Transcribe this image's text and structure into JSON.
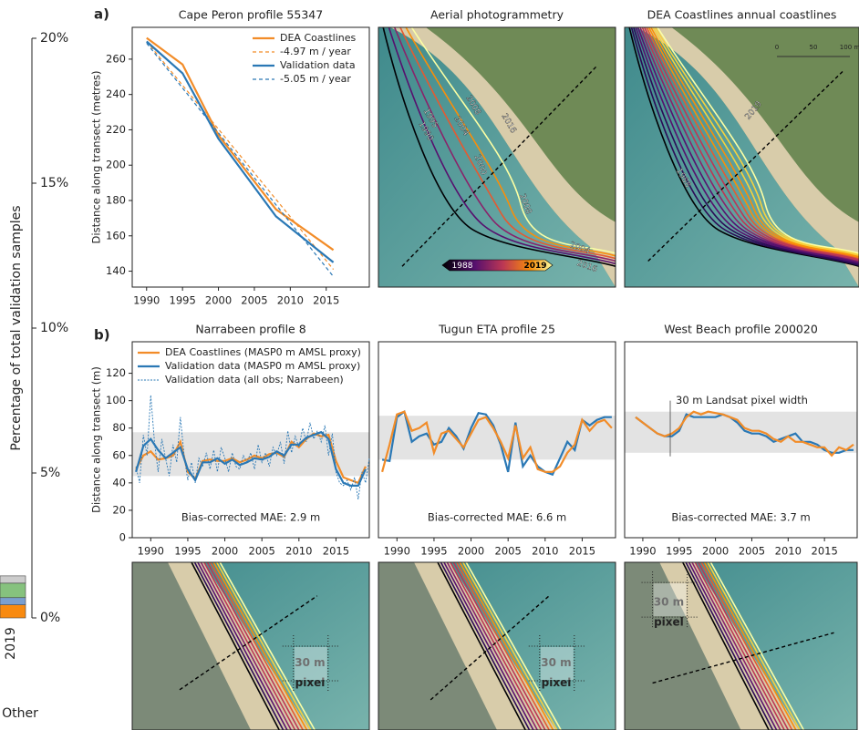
{
  "panel_labels": [
    "a)",
    "b)"
  ],
  "chart_data": [
    {
      "type": "stacked-bar",
      "ylabel": "Percentage of total validation samples",
      "xlabel": "Other",
      "categories": [
        "2019"
      ],
      "ylim": [
        0,
        20
      ],
      "yticks": [
        {
          "value": 0,
          "label": "0%"
        },
        {
          "value": 5,
          "label": "5%"
        },
        {
          "value": 10,
          "label": "10%"
        },
        {
          "value": 15,
          "label": "15%"
        },
        {
          "value": 20,
          "label": "20%"
        }
      ],
      "series": [
        {
          "color": "#f88a10",
          "values": [
            0.45
          ]
        },
        {
          "color": "#7a9fd0",
          "values": [
            0.25
          ]
        },
        {
          "color": "#86c27e",
          "values": [
            0.5
          ]
        },
        {
          "color": "#cccccc",
          "values": [
            0.25
          ]
        }
      ]
    },
    {
      "type": "line",
      "title": "Cape Peron profile 55347",
      "ylabel": "Distance along transect (metres)",
      "xlim": [
        1988,
        2021
      ],
      "xticks": [
        1990,
        1995,
        2000,
        2005,
        2010,
        2015
      ],
      "ylim": [
        131,
        278
      ],
      "yticks": [
        140,
        160,
        180,
        200,
        220,
        240,
        260
      ],
      "legend": "upper right",
      "series": [
        {
          "name": "DEA Coastlines",
          "color": "#f28c28",
          "x": [
            1990,
            1995,
            2000,
            2008,
            2016
          ],
          "values": [
            272,
            257,
            217,
            175,
            152
          ]
        },
        {
          "name": "-4.97 m / year",
          "color": "#f28c28",
          "dash": true,
          "x": [
            1990,
            2016
          ],
          "values": [
            270,
            141
          ]
        },
        {
          "name": "Validation data",
          "color": "#2a78b5",
          "x": [
            1990,
            1995,
            2000,
            2008,
            2016
          ],
          "values": [
            270,
            252,
            215,
            171,
            145
          ]
        },
        {
          "name": "-5.05 m / year",
          "color": "#2a78b5",
          "dash": true,
          "x": [
            1990,
            2016
          ],
          "values": [
            269,
            137
          ]
        }
      ]
    },
    {
      "type": "line",
      "title": "Narrabeen profile 8",
      "ylabel": "Distance along transect (m)",
      "xlim": [
        1987.5,
        2019.5
      ],
      "xticks": [
        1990,
        1995,
        2000,
        2005,
        2010,
        2015
      ],
      "ylim": [
        0,
        143
      ],
      "yticks": [
        0,
        20,
        40,
        60,
        80,
        100,
        120
      ],
      "band": [
        45,
        77
      ],
      "legend": "upper left",
      "annotation": "Bias-corrected MAE: 2.9 m",
      "x": [
        1988,
        1989,
        1990,
        1991,
        1992,
        1993,
        1994,
        1995,
        1996,
        1997,
        1998,
        1999,
        2000,
        2001,
        2002,
        2003,
        2004,
        2005,
        2006,
        2007,
        2008,
        2009,
        2010,
        2011,
        2012,
        2013,
        2014,
        2015,
        2016,
        2017,
        2018,
        2019
      ],
      "series": [
        {
          "name": "DEA Coastlines (MASP0 m AMSL proxy)",
          "color": "#f28c28",
          "values": [
            50,
            60,
            63,
            57,
            58,
            60,
            70,
            48,
            43,
            56,
            57,
            56,
            56,
            58,
            55,
            57,
            60,
            58,
            61,
            62,
            59,
            70,
            66,
            72,
            76,
            74,
            75,
            56,
            44,
            42,
            40,
            52
          ]
        },
        {
          "name": "Validation data (MASP0 m AMSL proxy)",
          "color": "#2a78b5",
          "values": [
            48,
            67,
            72,
            64,
            58,
            62,
            66,
            50,
            42,
            55,
            55,
            58,
            54,
            57,
            53,
            55,
            58,
            57,
            59,
            63,
            60,
            68,
            68,
            73,
            75,
            77,
            72,
            50,
            40,
            38,
            38,
            50
          ]
        },
        {
          "name": "Validation data (all obs; Narrabeen)",
          "color": "#2a78b5",
          "dash": true,
          "thin": true,
          "x": [
            1988,
            1988.5,
            1989,
            1989.5,
            1990,
            1990.5,
            1991,
            1991.5,
            1992,
            1992.5,
            1993,
            1993.5,
            1994,
            1994.5,
            1995,
            1995.5,
            1996,
            1996.5,
            1997,
            1997.5,
            1998,
            1998.5,
            1999,
            1999.5,
            2000,
            2000.5,
            2001,
            2001.5,
            2002,
            2002.5,
            2003,
            2003.5,
            2004,
            2004.5,
            2005,
            2005.5,
            2006,
            2006.5,
            2007,
            2007.5,
            2008,
            2008.5,
            2009,
            2009.5,
            2010,
            2010.5,
            2011,
            2011.5,
            2012,
            2012.5,
            2013,
            2013.5,
            2014,
            2014.5,
            2015,
            2015.5,
            2016,
            2016.5,
            2017,
            2017.5,
            2018,
            2018.5,
            2019,
            2019.5
          ],
          "values": [
            52,
            40,
            75,
            60,
            104,
            70,
            48,
            72,
            58,
            45,
            68,
            55,
            88,
            60,
            42,
            55,
            40,
            58,
            52,
            62,
            50,
            64,
            48,
            66,
            58,
            48,
            62,
            52,
            50,
            60,
            55,
            62,
            50,
            68,
            55,
            62,
            52,
            66,
            60,
            70,
            54,
            78,
            62,
            74,
            66,
            80,
            70,
            84,
            72,
            78,
            70,
            82,
            60,
            76,
            48,
            40,
            38,
            42,
            35,
            44,
            28,
            48,
            40,
            58
          ]
        }
      ]
    },
    {
      "type": "line",
      "title": "Tugun ETA profile 25",
      "xlim": [
        1987.5,
        2019.5
      ],
      "xticks": [
        1990,
        1995,
        2000,
        2005,
        2010,
        2015
      ],
      "ylim": [
        0,
        143
      ],
      "band": [
        57,
        89
      ],
      "annotation": "Bias-corrected MAE: 6.6 m",
      "x": [
        1988,
        1989,
        1990,
        1991,
        1992,
        1993,
        1994,
        1995,
        1996,
        1997,
        1998,
        1999,
        2000,
        2001,
        2002,
        2003,
        2004,
        2005,
        2006,
        2007,
        2008,
        2009,
        2010,
        2011,
        2012,
        2013,
        2014,
        2015,
        2016,
        2017,
        2018,
        2019
      ],
      "series": [
        {
          "color": "#2a78b5",
          "values": [
            57,
            56,
            88,
            92,
            70,
            74,
            76,
            68,
            70,
            80,
            74,
            65,
            80,
            91,
            90,
            82,
            68,
            48,
            84,
            52,
            60,
            52,
            48,
            46,
            58,
            70,
            64,
            86,
            82,
            86,
            88,
            88
          ]
        },
        {
          "color": "#f28c28",
          "values": [
            48,
            68,
            90,
            92,
            78,
            80,
            84,
            62,
            76,
            78,
            72,
            66,
            76,
            86,
            88,
            80,
            70,
            58,
            82,
            58,
            66,
            50,
            48,
            48,
            52,
            62,
            68,
            86,
            78,
            84,
            86,
            80
          ]
        }
      ]
    },
    {
      "type": "line",
      "title": "West Beach profile 200020",
      "xlim": [
        1987.5,
        2019.5
      ],
      "xticks": [
        1990,
        1995,
        2000,
        2005,
        2010,
        2015
      ],
      "ylim": [
        0,
        143
      ],
      "band": [
        62,
        92
      ],
      "annotation": "Bias-corrected MAE: 3.7 m",
      "band_label": "30 m Landsat pixel width",
      "x": [
        1989,
        1990,
        1991,
        1992,
        1993,
        1994,
        1995,
        1996,
        1997,
        1998,
        1999,
        2000,
        2001,
        2002,
        2003,
        2004,
        2005,
        2006,
        2007,
        2008,
        2009,
        2010,
        2011,
        2012,
        2013,
        2014,
        2015,
        2016,
        2017,
        2018,
        2019
      ],
      "series": [
        {
          "color": "#2a78b5",
          "values": [
            88,
            84,
            80,
            76,
            74,
            74,
            78,
            90,
            88,
            88,
            88,
            88,
            90,
            88,
            84,
            78,
            76,
            76,
            74,
            70,
            72,
            74,
            76,
            70,
            70,
            68,
            64,
            62,
            62,
            64,
            64
          ]
        },
        {
          "color": "#f28c28",
          "values": [
            88,
            84,
            80,
            76,
            74,
            76,
            80,
            88,
            92,
            90,
            92,
            91,
            90,
            88,
            86,
            80,
            78,
            78,
            76,
            72,
            70,
            74,
            70,
            70,
            68,
            66,
            66,
            60,
            66,
            64,
            68
          ]
        }
      ]
    }
  ],
  "images": [
    {
      "title": "Aerial photogrammetry",
      "labels": [
        "2008",
        "2004",
        "2016",
        "1995",
        "1990",
        "2000",
        "2008",
        "2004",
        "2016"
      ],
      "colorbar": [
        "1988",
        "2019"
      ]
    },
    {
      "title": "DEA Coastlines annual coastlines",
      "labels": [
        "2019",
        "1988"
      ],
      "scale": [
        "0",
        "50",
        "100 m"
      ]
    },
    {
      "labels": [
        "30 m",
        "pixel"
      ]
    },
    {
      "labels": [
        "30 m",
        "pixel"
      ]
    },
    {
      "labels": [
        "30 m",
        "pixel"
      ]
    }
  ]
}
